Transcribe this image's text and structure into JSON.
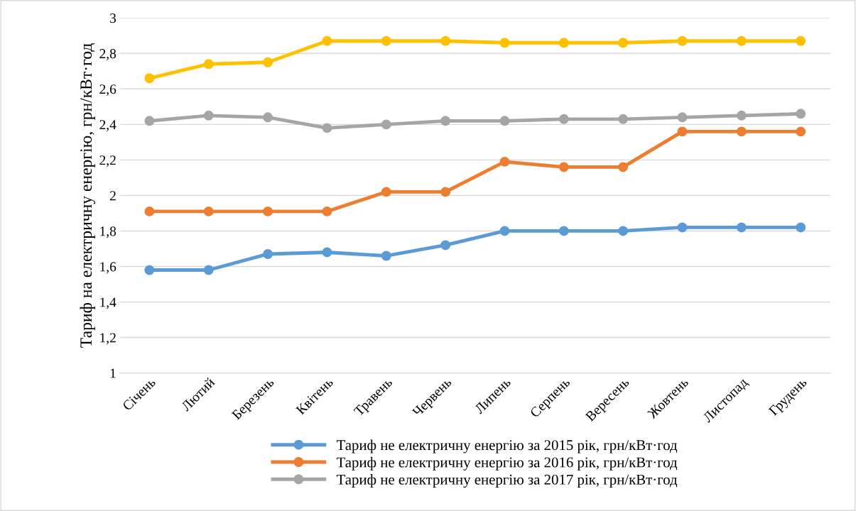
{
  "chart_data": {
    "type": "line",
    "ylabel": "Тариф на електричну енергію, грн/кВт·год",
    "categories": [
      "Січень",
      "Лютий",
      "Березень",
      "Квітень",
      "Травень",
      "Червень",
      "Липень",
      "Серпень",
      "Вересень",
      "Жовтень",
      "Листопад",
      "Грудень"
    ],
    "series": [
      {
        "name": "Тариф не електричну енергію за 2015 рік, грн/кВт·год",
        "color": "#5b9bd5",
        "values": [
          1.58,
          1.58,
          1.67,
          1.68,
          1.66,
          1.72,
          1.8,
          1.8,
          1.8,
          1.82,
          1.82,
          1.82
        ]
      },
      {
        "name": "Тариф не електричну енергію за 2016 рік, грн/кВт·год",
        "color": "#ed7d31",
        "values": [
          1.91,
          1.91,
          1.91,
          1.91,
          2.02,
          2.02,
          2.19,
          2.16,
          2.16,
          2.36,
          2.36,
          2.36
        ]
      },
      {
        "name": "Тариф не електричну енергію за 2017 рік, грн/кВт·год",
        "color": "#a5a5a5",
        "values": [
          2.42,
          2.45,
          2.44,
          2.38,
          2.4,
          2.42,
          2.42,
          2.43,
          2.43,
          2.44,
          2.45,
          2.46
        ]
      },
      {
        "color": "#ffc000",
        "values": [
          2.66,
          2.74,
          2.75,
          2.87,
          2.87,
          2.87,
          2.86,
          2.86,
          2.86,
          2.87,
          2.87,
          2.87
        ]
      }
    ],
    "ylim": [
      1,
      3
    ],
    "yticks": [
      1,
      {
        "value": 1.2,
        "label": "1,2"
      },
      {
        "value": 1.4,
        "label": "1,4"
      },
      {
        "value": 1.6,
        "label": "1,6"
      },
      {
        "value": 1.8,
        "label": "1,8"
      },
      2,
      {
        "value": 2.2,
        "label": "2,2"
      },
      {
        "value": 2.4,
        "label": "2,4"
      },
      {
        "value": 2.6,
        "label": "2,6"
      },
      {
        "value": 2.8,
        "label": "2,8"
      },
      3
    ],
    "grid": "y",
    "legend": "bottom",
    "marker": "circle",
    "line_style": "solid"
  }
}
